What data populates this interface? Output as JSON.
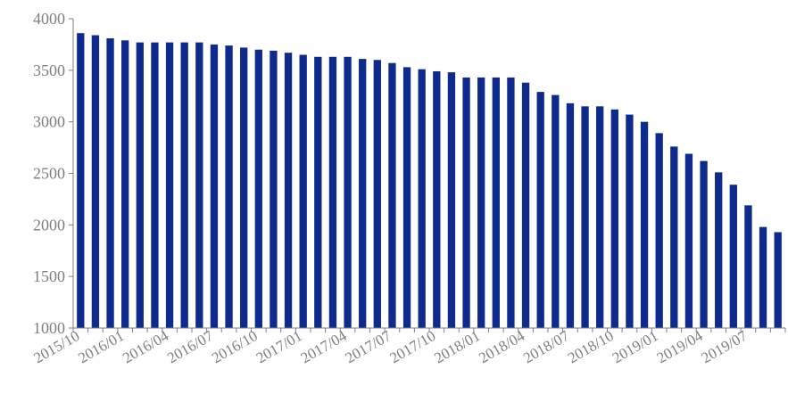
{
  "chart_data": {
    "type": "bar",
    "title": "",
    "xlabel": "",
    "ylabel": "",
    "ylim": [
      1000,
      4000
    ],
    "yticks": [
      1000,
      1500,
      2000,
      2500,
      3000,
      3500,
      4000
    ],
    "grid": false,
    "bar_color": "#0D2A8C",
    "axis_color": "#7f7f7f",
    "categories": [
      "2015/10",
      "2015/11",
      "2015/12",
      "2016/01",
      "2016/02",
      "2016/03",
      "2016/04",
      "2016/05",
      "2016/06",
      "2016/07",
      "2016/08",
      "2016/09",
      "2016/10",
      "2016/11",
      "2016/12",
      "2017/01",
      "2017/02",
      "2017/03",
      "2017/04",
      "2017/05",
      "2017/06",
      "2017/07",
      "2017/08",
      "2017/09",
      "2017/10",
      "2017/11",
      "2017/12",
      "2018/01",
      "2018/02",
      "2018/03",
      "2018/04",
      "2018/05",
      "2018/06",
      "2018/07",
      "2018/08",
      "2018/09",
      "2018/10",
      "2018/11",
      "2018/12",
      "2019/01",
      "2019/02",
      "2019/03",
      "2019/04",
      "2019/05",
      "2019/06",
      "2019/07",
      "2019/08",
      "2019/09"
    ],
    "labeled_ticks": [
      "2015/10",
      "2016/01",
      "2016/04",
      "2016/07",
      "2016/10",
      "2017/01",
      "2017/04",
      "2017/07",
      "2017/10",
      "2018/01",
      "2018/04",
      "2018/07",
      "2018/10",
      "2019/01",
      "2019/04",
      "2019/07"
    ],
    "values": [
      3860,
      3840,
      3810,
      3790,
      3770,
      3770,
      3770,
      3770,
      3770,
      3750,
      3740,
      3720,
      3700,
      3690,
      3670,
      3650,
      3630,
      3630,
      3630,
      3610,
      3600,
      3570,
      3530,
      3510,
      3490,
      3480,
      3430,
      3430,
      3430,
      3430,
      3380,
      3290,
      3260,
      3180,
      3150,
      3150,
      3120,
      3070,
      3000,
      2890,
      2760,
      2690,
      2620,
      2510,
      2390,
      2190,
      1980,
      1930
    ]
  }
}
